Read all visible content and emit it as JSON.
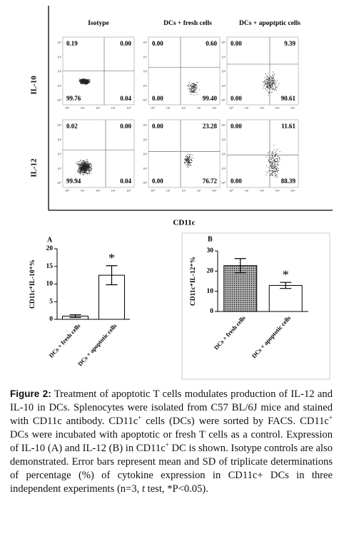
{
  "flow": {
    "columns": [
      "Isotype",
      "DCs +  fresh cells",
      "DCs +  apoptptic cells"
    ],
    "rows": [
      "IL-10",
      "IL-12"
    ],
    "x_label": "CD11c",
    "axis_tick_labels": [
      "10⁰",
      "10¹",
      "10²",
      "10³",
      "10⁴"
    ],
    "quadrants": [
      [
        [
          "0.19",
          "0.00",
          "99.76",
          "0.04"
        ],
        [
          "0.00",
          "0.60",
          "0.00",
          "99.40"
        ],
        [
          "0.00",
          "9.39",
          "0.00",
          "90.61"
        ]
      ],
      [
        [
          "0.02",
          "0.00",
          "99.94",
          "0.04"
        ],
        [
          "0.00",
          "23.28",
          "0.00",
          "76.72"
        ],
        [
          "0.00",
          "11.61",
          "0.00",
          "88.39"
        ]
      ]
    ]
  },
  "chart_data": [
    {
      "type": "bar",
      "title": "A",
      "y_label": "CD11c⁺IL-10⁺%",
      "categories": [
        "DCs + fresh cells",
        "DCs + apoptotic cells"
      ],
      "values": [
        0.9,
        12.5
      ],
      "errors": [
        0.4,
        2.7
      ],
      "patterns": [
        "none",
        "none"
      ],
      "annotations": [
        {
          "text": "*",
          "category": "DCs + apoptotic cells"
        }
      ],
      "ylim": [
        0,
        20
      ],
      "yticks": [
        0,
        5,
        10,
        15,
        20
      ]
    },
    {
      "type": "bar",
      "title": "B",
      "y_label": "CD11c⁺IL-12⁺%",
      "categories": [
        "DCs + fresh cells",
        "DCs + apoptotic cells"
      ],
      "values": [
        22.7,
        12.9
      ],
      "errors": [
        3.5,
        1.5
      ],
      "patterns": [
        "dots",
        "none"
      ],
      "annotations": [
        {
          "text": "*",
          "category": "DCs + apoptotic cells"
        }
      ],
      "ylim": [
        0,
        30
      ],
      "yticks": [
        0,
        10,
        20,
        30
      ],
      "frame": true
    }
  ],
  "caption": {
    "label": "Figure 2:",
    "runs": [
      {
        "text": " Treatment of apoptotic T cells modulates production of IL-12 and IL-10 in DCs. Splenocytes were isolated from C57 BL/6J mice and stained with CD11c antibody. CD11c"
      },
      {
        "text": "+",
        "style": "sup"
      },
      {
        "text": " cells (DCs) were sorted by FACS. CD11c"
      },
      {
        "text": "+",
        "style": "sup"
      },
      {
        "text": " DCs were incubated with apoptotic or fresh T cells as a control. Expression of IL-10 (A) and IL-12 (B) in CD11c"
      },
      {
        "text": "+",
        "style": "sup"
      },
      {
        "text": " DC is shown. Isotype controls are also demonstrated. Error bars represent mean and SD of triplicate determinations of percentage (%) of cytokine expression in CD11c+ DCs in three independent experiments (n=3, "
      },
      {
        "text": "t",
        "style": "italic"
      },
      {
        "text": " test, *P<0.05)."
      }
    ]
  }
}
